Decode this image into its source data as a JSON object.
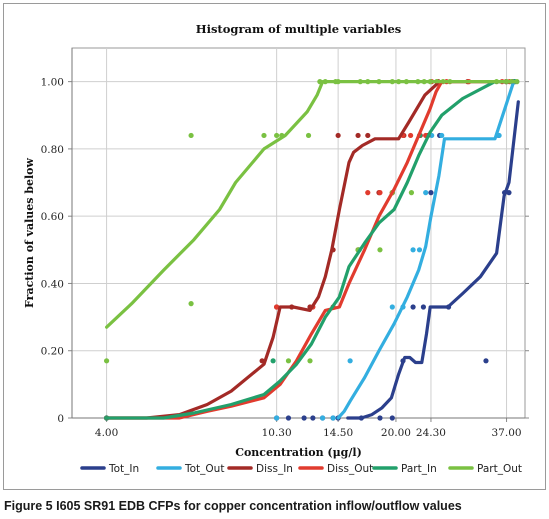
{
  "caption": "Figure 5 I605 SR91 EDB CFPs for copper concentration inflow/outflow values",
  "chart_data": {
    "type": "line",
    "title": "Histogram of multiple variables",
    "xlabel": "Concentration (μg/l)",
    "ylabel": "Fraction of values below",
    "x_scale": "log",
    "xlim": [
      3.3,
      41
    ],
    "ylim": [
      0,
      1.1
    ],
    "x_ticks": [
      4,
      10.3,
      14.5,
      20,
      24.3,
      37
    ],
    "x_tick_labels": [
      "4.00",
      "10.30",
      "14.50",
      "20.00",
      "24.30",
      "37.00"
    ],
    "y_ticks": [
      0,
      0.2,
      0.4,
      0.6,
      0.8,
      1.0
    ],
    "y_tick_labels": [
      "0",
      "0.20",
      "0.40",
      "0.60",
      "0.80",
      "1.00"
    ],
    "grid": true,
    "legend_position": "bottom",
    "series": [
      {
        "name": "Tot_In",
        "color": "#2b3f8c",
        "line": [
          [
            15.3,
            0
          ],
          [
            16.5,
            0
          ],
          [
            17.5,
            0.01
          ],
          [
            18.5,
            0.03
          ],
          [
            19.5,
            0.06
          ],
          [
            20.3,
            0.13
          ],
          [
            21.0,
            0.18
          ],
          [
            21.6,
            0.18
          ],
          [
            22.3,
            0.165
          ],
          [
            23.1,
            0.165
          ],
          [
            23.7,
            0.25
          ],
          [
            24.2,
            0.33
          ],
          [
            25.5,
            0.33
          ],
          [
            26.7,
            0.33
          ],
          [
            29.0,
            0.37
          ],
          [
            32.0,
            0.42
          ],
          [
            35.0,
            0.49
          ],
          [
            36.5,
            0.66
          ],
          [
            37.5,
            0.7
          ],
          [
            39.5,
            0.94
          ]
        ],
        "points": [
          [
            4.0,
            0
          ],
          [
            10.3,
            0
          ],
          [
            11.0,
            0
          ],
          [
            12.0,
            0
          ],
          [
            12.6,
            0
          ],
          [
            13.3,
            0
          ],
          [
            14.1,
            0
          ],
          [
            14.5,
            0
          ],
          [
            16.5,
            0
          ],
          [
            18.3,
            0
          ],
          [
            19.6,
            0
          ],
          [
            20.8,
            0.17
          ],
          [
            22.0,
            0.33
          ],
          [
            23.3,
            0.33
          ],
          [
            24.3,
            0.67
          ],
          [
            25.5,
            0.84
          ],
          [
            26.8,
            0.33
          ],
          [
            33.0,
            0.17
          ],
          [
            35.4,
            0.84
          ],
          [
            36.6,
            0.67
          ],
          [
            37.5,
            0.67
          ],
          [
            38.7,
            1.0
          ]
        ]
      },
      {
        "name": "Tot_Out",
        "color": "#33aee0",
        "line": [
          [
            14.5,
            0
          ],
          [
            15.0,
            0.02
          ],
          [
            15.5,
            0.05
          ],
          [
            16.8,
            0.12
          ],
          [
            18.2,
            0.2
          ],
          [
            19.8,
            0.28
          ],
          [
            21.3,
            0.36
          ],
          [
            22.7,
            0.44
          ],
          [
            23.6,
            0.51
          ],
          [
            24.3,
            0.6
          ],
          [
            25.4,
            0.72
          ],
          [
            26.2,
            0.83
          ],
          [
            28.8,
            0.83
          ],
          [
            34.7,
            0.83
          ],
          [
            38.5,
            1.0
          ],
          [
            39.2,
            1.0
          ]
        ],
        "points": [
          [
            4.0,
            0
          ],
          [
            10.3,
            0
          ],
          [
            13.3,
            0
          ],
          [
            14.1,
            0
          ],
          [
            15.5,
            0.17
          ],
          [
            19.6,
            0.33
          ],
          [
            20.8,
            0.33
          ],
          [
            22.0,
            0.5
          ],
          [
            22.8,
            0.5
          ],
          [
            23.6,
            0.67
          ],
          [
            24.4,
            0.84
          ],
          [
            25.8,
            0.84
          ],
          [
            35.5,
            0.84
          ],
          [
            37.0,
            1.0
          ]
        ]
      },
      {
        "name": "Diss_In",
        "color": "#a32a26",
        "line": [
          [
            4.0,
            0
          ],
          [
            5.0,
            0
          ],
          [
            6.0,
            0.01
          ],
          [
            7.0,
            0.04
          ],
          [
            8.0,
            0.08
          ],
          [
            9.6,
            0.16
          ],
          [
            10.1,
            0.24
          ],
          [
            10.5,
            0.33
          ],
          [
            11.3,
            0.33
          ],
          [
            12.4,
            0.32
          ],
          [
            13.0,
            0.36
          ],
          [
            13.5,
            0.42
          ],
          [
            14.0,
            0.5
          ],
          [
            14.6,
            0.62
          ],
          [
            15.4,
            0.76
          ],
          [
            15.8,
            0.79
          ],
          [
            16.6,
            0.81
          ],
          [
            17.8,
            0.83
          ],
          [
            20.3,
            0.83
          ],
          [
            21.5,
            0.88
          ],
          [
            23.5,
            0.96
          ],
          [
            25.5,
            1.0
          ],
          [
            29.0,
            1.0
          ],
          [
            39.2,
            1.0
          ]
        ],
        "points": [
          [
            4.0,
            0
          ],
          [
            9.5,
            0.17
          ],
          [
            10.3,
            0.33
          ],
          [
            11.2,
            0.33
          ],
          [
            12.4,
            0.33
          ],
          [
            14.1,
            0.5
          ],
          [
            14.5,
            0.84
          ],
          [
            16.2,
            0.84
          ],
          [
            17.1,
            0.84
          ],
          [
            18.2,
            0.67
          ],
          [
            19.6,
            0.67
          ],
          [
            20.9,
            0.84
          ],
          [
            22.9,
            0.84
          ],
          [
            23.9,
            0.84
          ],
          [
            25.3,
            1.0
          ],
          [
            29.8,
            1.0
          ],
          [
            36.9,
            1.0
          ],
          [
            38.2,
            1.0
          ]
        ]
      },
      {
        "name": "Diss_Out",
        "color": "#e13b2e",
        "line": [
          [
            4.0,
            0
          ],
          [
            5.0,
            0
          ],
          [
            6.0,
            0
          ],
          [
            7.0,
            0.02
          ],
          [
            8.0,
            0.035
          ],
          [
            9.6,
            0.06
          ],
          [
            10.5,
            0.1
          ],
          [
            11.5,
            0.17
          ],
          [
            12.5,
            0.25
          ],
          [
            13.5,
            0.32
          ],
          [
            14.6,
            0.33
          ],
          [
            15.4,
            0.4
          ],
          [
            16.8,
            0.5
          ],
          [
            18.2,
            0.6
          ],
          [
            19.8,
            0.68
          ],
          [
            21.3,
            0.76
          ],
          [
            22.7,
            0.84
          ],
          [
            24.2,
            0.92
          ],
          [
            25.0,
            0.97
          ],
          [
            25.8,
            1.0
          ],
          [
            27.5,
            1.0
          ],
          [
            39.2,
            1.0
          ]
        ],
        "points": [
          [
            4.0,
            0
          ],
          [
            10.3,
            0.33
          ],
          [
            12.6,
            0.33
          ],
          [
            14.1,
            0.33
          ],
          [
            16.2,
            0.5
          ],
          [
            17.1,
            0.67
          ],
          [
            18.3,
            0.67
          ],
          [
            19.6,
            0.67
          ],
          [
            20.8,
            0.84
          ],
          [
            21.7,
            0.84
          ],
          [
            23.6,
            0.84
          ],
          [
            24.4,
            1.0
          ],
          [
            26.5,
            1.0
          ],
          [
            30.0,
            1.0
          ],
          [
            36.1,
            1.0
          ],
          [
            37.6,
            1.0
          ]
        ]
      },
      {
        "name": "Part_In",
        "color": "#22a06b",
        "line": [
          [
            4.0,
            0
          ],
          [
            5.5,
            0
          ],
          [
            6.5,
            0.015
          ],
          [
            8.0,
            0.04
          ],
          [
            9.6,
            0.07
          ],
          [
            10.5,
            0.11
          ],
          [
            11.5,
            0.16
          ],
          [
            12.5,
            0.22
          ],
          [
            13.5,
            0.3
          ],
          [
            14.6,
            0.36
          ],
          [
            15.4,
            0.45
          ],
          [
            16.8,
            0.52
          ],
          [
            18.2,
            0.58
          ],
          [
            19.8,
            0.62
          ],
          [
            21.3,
            0.7
          ],
          [
            22.7,
            0.78
          ],
          [
            24.2,
            0.85
          ],
          [
            25.8,
            0.9
          ],
          [
            29.0,
            0.95
          ],
          [
            34.7,
            1.0
          ],
          [
            39.2,
            1.0
          ]
        ],
        "points": [
          [
            4.0,
            0
          ],
          [
            10.1,
            0.17
          ],
          [
            16.3,
            0.5
          ],
          [
            22.8,
            0.84
          ],
          [
            38.7,
            1.0
          ]
        ]
      },
      {
        "name": "Part_Out",
        "color": "#7ac142",
        "line": [
          [
            4.0,
            0.27
          ],
          [
            4.6,
            0.34
          ],
          [
            5.5,
            0.44
          ],
          [
            6.5,
            0.53
          ],
          [
            7.5,
            0.62
          ],
          [
            8.2,
            0.7
          ],
          [
            9.6,
            0.8
          ],
          [
            10.8,
            0.84
          ],
          [
            12.2,
            0.91
          ],
          [
            12.9,
            0.96
          ],
          [
            13.3,
            1.0
          ],
          [
            14.5,
            1.0
          ],
          [
            39.2,
            1.0
          ]
        ],
        "points": [
          [
            4.0,
            0.17
          ],
          [
            6.4,
            0.84
          ],
          [
            6.4,
            0.34
          ],
          [
            9.6,
            0.84
          ],
          [
            10.3,
            0.84
          ],
          [
            10.6,
            0.84
          ],
          [
            11.0,
            0.17
          ],
          [
            12.3,
            0.84
          ],
          [
            12.4,
            0.17
          ],
          [
            13.1,
            1.0
          ],
          [
            13.5,
            1.0
          ],
          [
            14.3,
            1.0
          ],
          [
            14.5,
            1.0
          ],
          [
            16.4,
            1.0
          ],
          [
            17.1,
            1.0
          ],
          [
            18.2,
            1.0
          ],
          [
            19.6,
            1.0
          ],
          [
            20.3,
            1.0
          ],
          [
            21.2,
            1.0
          ],
          [
            21.8,
            0.67
          ],
          [
            22.6,
            1.0
          ],
          [
            23.4,
            1.0
          ],
          [
            24.2,
            1.0
          ],
          [
            25.1,
            1.0
          ],
          [
            26.0,
            1.0
          ],
          [
            27.0,
            1.0
          ],
          [
            35.0,
            1.0
          ],
          [
            37.0,
            1.0
          ],
          [
            38.0,
            1.0
          ],
          [
            39.2,
            1.0
          ],
          [
            16.2,
            0.5
          ],
          [
            19.6,
            0.67
          ],
          [
            18.3,
            0.5
          ]
        ]
      }
    ]
  }
}
